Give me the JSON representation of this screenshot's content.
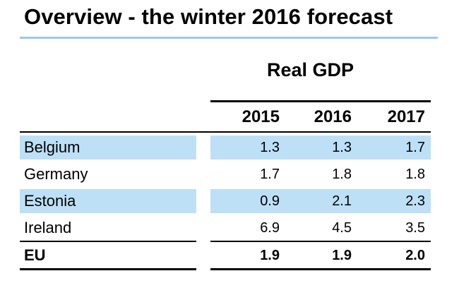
{
  "title": "Overview - the winter 2016 forecast",
  "table": {
    "caption": "Real GDP",
    "columns": [
      "2015",
      "2016",
      "2017"
    ],
    "rows": [
      {
        "country": "Belgium",
        "values": [
          "1.3",
          "1.3",
          "1.7"
        ],
        "highlight": true
      },
      {
        "country": "Germany",
        "values": [
          "1.7",
          "1.8",
          "1.8"
        ],
        "highlight": false
      },
      {
        "country": "Estonia",
        "values": [
          "0.9",
          "2.1",
          "2.3"
        ],
        "highlight": true
      },
      {
        "country": "Ireland",
        "values": [
          "6.9",
          "4.5",
          "3.5"
        ],
        "highlight": false
      }
    ],
    "total": {
      "country": "EU",
      "values": [
        "1.9",
        "1.9",
        "2.0"
      ]
    }
  },
  "colors": {
    "highlight_band": "#bde0f7",
    "title_rule": "#9cc8ec"
  }
}
